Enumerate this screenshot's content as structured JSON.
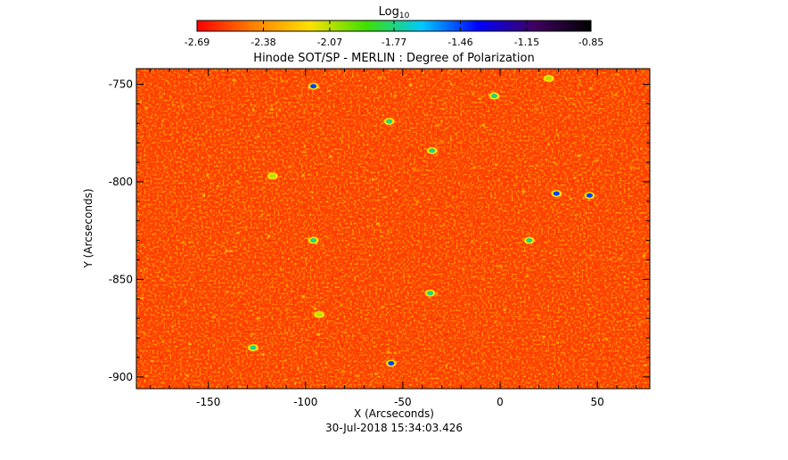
{
  "chart_data": {
    "type": "heatmap",
    "title": "Hinode SOT/SP - MERLIN : Degree of Polarization",
    "xlabel": "X (Arcseconds)",
    "ylabel": "Y (Arcseconds)",
    "timestamp": "30-Jul-2018 15:34:03.426",
    "xlim": [
      -187,
      77
    ],
    "ylim": [
      -906,
      -742
    ],
    "x_ticks": [
      -150,
      -100,
      -50,
      0,
      50
    ],
    "y_ticks": [
      -750,
      -800,
      -850,
      -900
    ],
    "x_tick_labels": [
      "-150",
      "-100",
      "-50",
      "0",
      "50"
    ],
    "y_tick_labels": [
      "-750",
      "-800",
      "-850",
      "-900"
    ],
    "colorbar": {
      "label_base": "Log",
      "label_sub": "10",
      "colormap": "rainbow-reversed",
      "range": [
        -2.69,
        -0.85
      ],
      "ticks": [
        -2.69,
        -2.38,
        -2.07,
        -1.77,
        -1.46,
        -1.15,
        -0.85
      ],
      "tick_labels": [
        "-2.69",
        "-2.38",
        "-2.07",
        "-1.77",
        "-1.46",
        "-1.15",
        "-0.85"
      ],
      "colors": [
        "#ff0000",
        "#ff8000",
        "#ffe000",
        "#40e000",
        "#00c8ff",
        "#0000ff",
        "#400060",
        "#000000"
      ]
    },
    "field_summary": {
      "dominant_level": -2.55,
      "background_color": "#ff3a00",
      "noise_colors": [
        "#ff2000",
        "#ff5000",
        "#ff7a00",
        "#ffa000",
        "#ffcc00"
      ],
      "patch_levels": [
        -2.07,
        -1.77,
        -1.46
      ]
    },
    "patches": [
      {
        "x": -96,
        "y": -751,
        "v": -1.46
      },
      {
        "x": -57,
        "y": -769,
        "v": -1.77
      },
      {
        "x": -3,
        "y": -756,
        "v": -1.77
      },
      {
        "x": 29,
        "y": -806,
        "v": -1.46
      },
      {
        "x": 46,
        "y": -807,
        "v": -1.46
      },
      {
        "x": -96,
        "y": -830,
        "v": -1.77
      },
      {
        "x": -36,
        "y": -857,
        "v": -1.77
      },
      {
        "x": -127,
        "y": -885,
        "v": -1.77
      },
      {
        "x": -56,
        "y": -893,
        "v": -1.46
      },
      {
        "x": 15,
        "y": -830,
        "v": -1.77
      },
      {
        "x": -35,
        "y": -784,
        "v": -1.77
      },
      {
        "x": -93,
        "y": -868,
        "v": -2.07
      },
      {
        "x": -117,
        "y": -797,
        "v": -2.07
      },
      {
        "x": 25,
        "y": -747,
        "v": -2.07
      }
    ]
  }
}
